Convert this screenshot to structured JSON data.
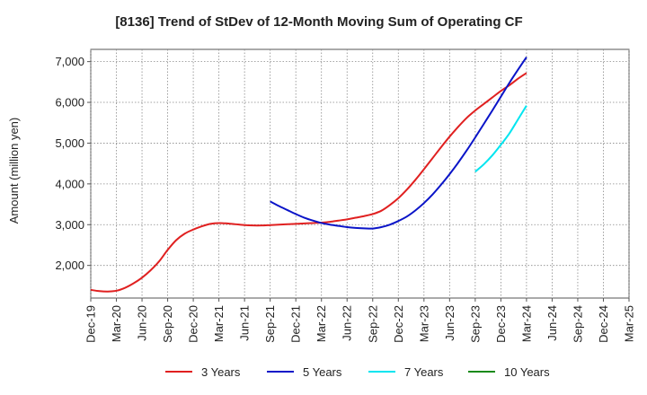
{
  "chart_data": {
    "type": "line",
    "title": "[8136]  Trend of StDev of 12-Month Moving Sum of Operating CF",
    "xlabel": "",
    "ylabel": "Amount (million yen)",
    "ylim": [
      1200,
      7300
    ],
    "yticks": [
      2000,
      3000,
      4000,
      5000,
      6000,
      7000
    ],
    "ytick_labels": [
      "2,000",
      "3,000",
      "4,000",
      "5,000",
      "6,000",
      "7,000"
    ],
    "x_start": "Dec-19",
    "x_end": "Mar-25",
    "x_tick_labels": [
      "Dec-19",
      "Mar-20",
      "Jun-20",
      "Sep-20",
      "Dec-20",
      "Mar-21",
      "Jun-21",
      "Sep-21",
      "Dec-21",
      "Mar-22",
      "Jun-22",
      "Sep-22",
      "Dec-22",
      "Mar-23",
      "Jun-23",
      "Sep-23",
      "Dec-23",
      "Mar-24",
      "Jun-24",
      "Sep-24",
      "Dec-24",
      "Mar-25"
    ],
    "grid": true,
    "legend_position": "bottom",
    "series": [
      {
        "name": "3 Years",
        "color": "#e02020",
        "x": [
          "Dec-19",
          "Jan-20",
          "Feb-20",
          "Mar-20",
          "Apr-20",
          "May-20",
          "Jun-20",
          "Jul-20",
          "Aug-20",
          "Sep-20",
          "Oct-20",
          "Nov-20",
          "Dec-20",
          "Jan-21",
          "Feb-21",
          "Mar-21",
          "Apr-21",
          "May-21",
          "Jun-21",
          "Jul-21",
          "Aug-21",
          "Sep-21",
          "Oct-21",
          "Nov-21",
          "Dec-21",
          "Jan-22",
          "Feb-22",
          "Mar-22",
          "Apr-22",
          "May-22",
          "Jun-22",
          "Jul-22",
          "Aug-22",
          "Sep-22",
          "Oct-22",
          "Nov-22",
          "Dec-22",
          "Jan-23",
          "Feb-23",
          "Mar-23",
          "Apr-23",
          "May-23",
          "Jun-23",
          "Jul-23",
          "Aug-23",
          "Sep-23",
          "Oct-23",
          "Nov-23",
          "Dec-23",
          "Jan-24",
          "Feb-24",
          "Mar-24"
        ],
        "values": [
          1400,
          1370,
          1360,
          1380,
          1450,
          1560,
          1700,
          1880,
          2100,
          2380,
          2620,
          2780,
          2880,
          2960,
          3020,
          3040,
          3030,
          3010,
          2990,
          2980,
          2980,
          2990,
          3000,
          3010,
          3020,
          3030,
          3040,
          3050,
          3070,
          3100,
          3130,
          3170,
          3210,
          3260,
          3340,
          3480,
          3650,
          3860,
          4100,
          4360,
          4630,
          4900,
          5160,
          5400,
          5620,
          5800,
          5960,
          6120,
          6280,
          6420,
          6580,
          6720
        ]
      },
      {
        "name": "5 Years",
        "color": "#0a14c8",
        "x": [
          "Sep-21",
          "Oct-21",
          "Nov-21",
          "Dec-21",
          "Jan-22",
          "Feb-22",
          "Mar-22",
          "Apr-22",
          "May-22",
          "Jun-22",
          "Jul-22",
          "Aug-22",
          "Sep-22",
          "Oct-22",
          "Nov-22",
          "Dec-22",
          "Jan-23",
          "Feb-23",
          "Mar-23",
          "Apr-23",
          "May-23",
          "Jun-23",
          "Jul-23",
          "Aug-23",
          "Sep-23",
          "Oct-23",
          "Nov-23",
          "Dec-23",
          "Jan-24",
          "Feb-24",
          "Mar-24"
        ],
        "values": [
          3570,
          3460,
          3360,
          3260,
          3170,
          3100,
          3040,
          3000,
          2970,
          2940,
          2920,
          2910,
          2905,
          2940,
          3000,
          3090,
          3200,
          3350,
          3530,
          3740,
          3980,
          4240,
          4520,
          4820,
          5140,
          5470,
          5800,
          6140,
          6480,
          6800,
          7110
        ]
      },
      {
        "name": "7 Years",
        "color": "#00e5f0",
        "x": [
          "Sep-23",
          "Oct-23",
          "Nov-23",
          "Dec-23",
          "Jan-24",
          "Feb-24",
          "Mar-24"
        ],
        "values": [
          4300,
          4480,
          4700,
          4960,
          5240,
          5580,
          5920
        ]
      },
      {
        "name": "10 Years",
        "color": "#1a8a1a",
        "x": [],
        "values": []
      }
    ]
  }
}
